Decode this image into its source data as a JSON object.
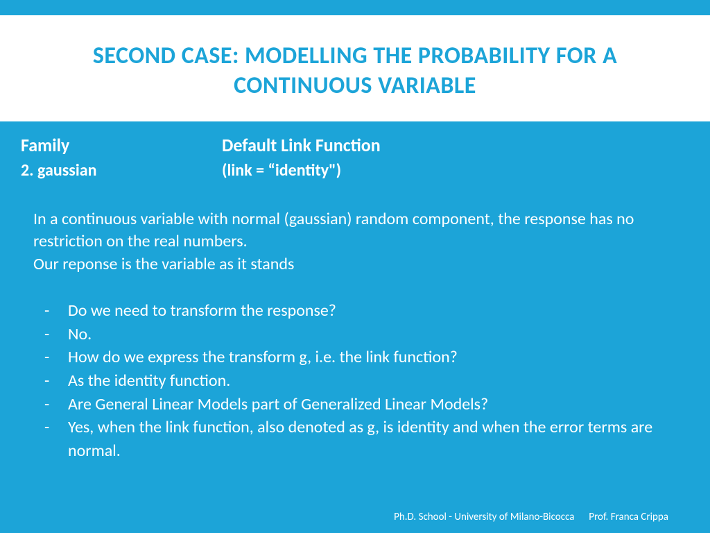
{
  "colors": {
    "accent": "#1ca4d8",
    "title_bg": "#ffffff",
    "text_on_accent": "#ffffff"
  },
  "title": "SECOND CASE: MODELLING THE PROBABILITY FOR A CONTINUOUS VARIABLE",
  "table": {
    "header_col1": "Family",
    "header_col2": "Default Link Function",
    "row1_col1": "2. gaussian",
    "row1_col2": "(link = “identity\")"
  },
  "paragraph": {
    "line1": "In a continuous variable with normal (gaussian) random component, the response has no restriction on the real numbers.",
    "line2": "Our reponse is the variable as it stands"
  },
  "questions": [
    "Do we need to  transform the response?",
    "No.",
    "How do we express the transform g, i.e. the link function?",
    "As the identity function.",
    "Are General Linear Models part of Generalized Linear Models?",
    "Yes, when the link function, also denoted as g, is identity and when the error terms are normal."
  ],
  "footer": {
    "left": "Ph.D. School - University of Milano-Bicocca",
    "right": "Prof. Franca Crippa"
  }
}
